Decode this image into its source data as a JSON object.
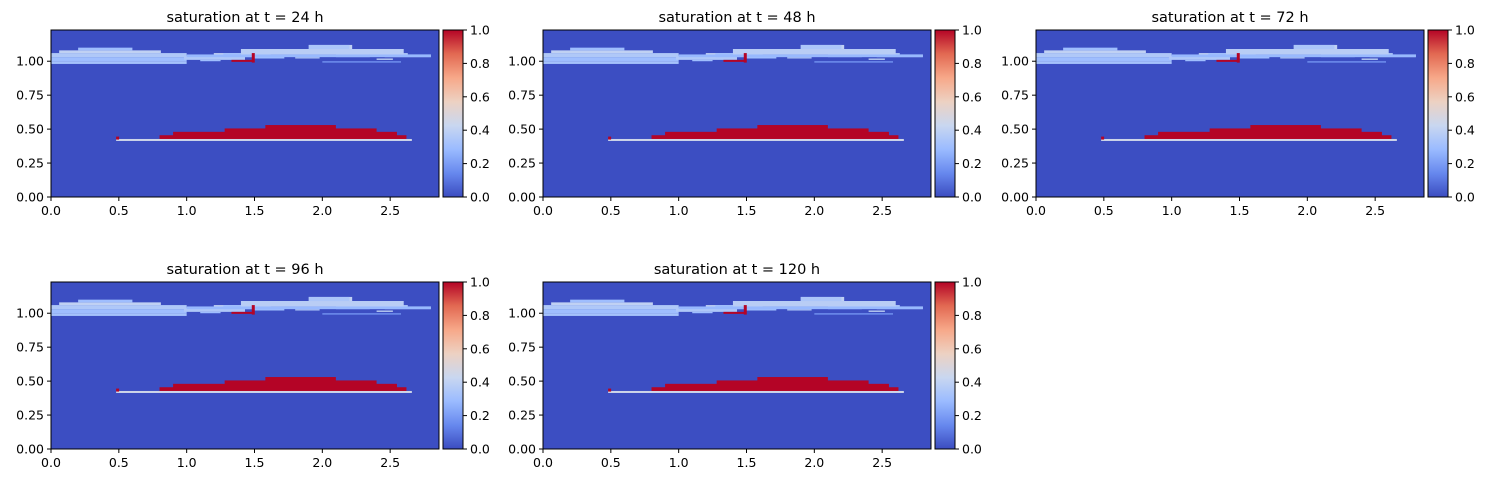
{
  "colormap": {
    "name": "coolwarm",
    "stops": [
      "#3b4cc0",
      "#6788ee",
      "#9abbff",
      "#c9d7f0",
      "#edd1c2",
      "#f7a889",
      "#e26952",
      "#b40426"
    ],
    "field_color": "#3c4ec2",
    "plume_color": "#b40426"
  },
  "chart_data": [
    {
      "type": "heatmap",
      "title": "saturation at t = 24 h",
      "xlim": [
        0,
        2.86
      ],
      "ylim": [
        0,
        1.23
      ],
      "xticks": [
        "0.0",
        "0.5",
        "1.0",
        "1.5",
        "2.0",
        "2.5"
      ],
      "yticks": [
        "0.00",
        "0.25",
        "0.50",
        "0.75",
        "1.00"
      ],
      "colorbar": {
        "range": [
          0,
          1
        ],
        "ticks": [
          "0.0",
          "0.2",
          "0.4",
          "0.6",
          "0.8",
          "1.0"
        ]
      },
      "background_value": 0.0,
      "regions": [
        {
          "kind": "gas-plume",
          "value": 1.0,
          "x": [
            0.8,
            2.62
          ],
          "y": [
            0.43,
            0.53
          ]
        },
        {
          "kind": "leak-line",
          "value": 0.25,
          "x": [
            0.48,
            2.66
          ],
          "y": [
            0.42,
            0.42
          ]
        },
        {
          "kind": "upper-cap",
          "value": 0.35,
          "x": [
            0.0,
            2.8
          ],
          "y": [
            0.98,
            1.12
          ]
        },
        {
          "kind": "upper-plume",
          "value": 1.0,
          "x": [
            1.33,
            1.52
          ],
          "y": [
            0.99,
            1.05
          ]
        }
      ]
    },
    {
      "type": "heatmap",
      "title": "saturation at t = 48 h",
      "xlim": [
        0,
        2.86
      ],
      "ylim": [
        0,
        1.23
      ],
      "xticks": [
        "0.0",
        "0.5",
        "1.0",
        "1.5",
        "2.0",
        "2.5"
      ],
      "yticks": [
        "0.00",
        "0.25",
        "0.50",
        "0.75",
        "1.00"
      ],
      "colorbar": {
        "range": [
          0,
          1
        ],
        "ticks": [
          "0.0",
          "0.2",
          "0.4",
          "0.6",
          "0.8",
          "1.0"
        ]
      },
      "background_value": 0.0,
      "regions": [
        {
          "kind": "gas-plume",
          "value": 1.0,
          "x": [
            0.8,
            2.62
          ],
          "y": [
            0.43,
            0.53
          ]
        },
        {
          "kind": "leak-line",
          "value": 0.25,
          "x": [
            0.48,
            2.66
          ],
          "y": [
            0.42,
            0.42
          ]
        },
        {
          "kind": "upper-cap",
          "value": 0.35,
          "x": [
            0.0,
            2.8
          ],
          "y": [
            0.98,
            1.12
          ]
        },
        {
          "kind": "upper-plume",
          "value": 1.0,
          "x": [
            1.33,
            1.52
          ],
          "y": [
            0.99,
            1.05
          ]
        }
      ]
    },
    {
      "type": "heatmap",
      "title": "saturation at t = 72 h",
      "xlim": [
        0,
        2.86
      ],
      "ylim": [
        0,
        1.23
      ],
      "xticks": [
        "0.0",
        "0.5",
        "1.0",
        "1.5",
        "2.0",
        "2.5"
      ],
      "yticks": [
        "0.00",
        "0.25",
        "0.50",
        "0.75",
        "1.00"
      ],
      "colorbar": {
        "range": [
          0,
          1
        ],
        "ticks": [
          "0.0",
          "0.2",
          "0.4",
          "0.6",
          "0.8",
          "1.0"
        ]
      },
      "background_value": 0.0,
      "regions": [
        {
          "kind": "gas-plume",
          "value": 1.0,
          "x": [
            0.8,
            2.62
          ],
          "y": [
            0.43,
            0.53
          ]
        },
        {
          "kind": "leak-line",
          "value": 0.25,
          "x": [
            0.48,
            2.66
          ],
          "y": [
            0.42,
            0.42
          ]
        },
        {
          "kind": "upper-cap",
          "value": 0.35,
          "x": [
            0.0,
            2.8
          ],
          "y": [
            0.98,
            1.12
          ]
        },
        {
          "kind": "upper-plume",
          "value": 1.0,
          "x": [
            1.33,
            1.52
          ],
          "y": [
            0.99,
            1.05
          ]
        }
      ]
    },
    {
      "type": "heatmap",
      "title": "saturation at t = 96 h",
      "xlim": [
        0,
        2.86
      ],
      "ylim": [
        0,
        1.23
      ],
      "xticks": [
        "0.0",
        "0.5",
        "1.0",
        "1.5",
        "2.0",
        "2.5"
      ],
      "yticks": [
        "0.00",
        "0.25",
        "0.50",
        "0.75",
        "1.00"
      ],
      "colorbar": {
        "range": [
          0,
          1
        ],
        "ticks": [
          "0.0",
          "0.2",
          "0.4",
          "0.6",
          "0.8",
          "1.0"
        ]
      },
      "background_value": 0.0,
      "regions": [
        {
          "kind": "gas-plume",
          "value": 1.0,
          "x": [
            0.8,
            2.62
          ],
          "y": [
            0.43,
            0.53
          ]
        },
        {
          "kind": "leak-line",
          "value": 0.25,
          "x": [
            0.48,
            2.66
          ],
          "y": [
            0.42,
            0.42
          ]
        },
        {
          "kind": "upper-cap",
          "value": 0.35,
          "x": [
            0.0,
            2.8
          ],
          "y": [
            0.98,
            1.12
          ]
        },
        {
          "kind": "upper-plume",
          "value": 1.0,
          "x": [
            1.33,
            1.52
          ],
          "y": [
            0.99,
            1.05
          ]
        }
      ]
    },
    {
      "type": "heatmap",
      "title": "saturation at t = 120 h",
      "xlim": [
        0,
        2.86
      ],
      "ylim": [
        0,
        1.23
      ],
      "xticks": [
        "0.0",
        "0.5",
        "1.0",
        "1.5",
        "2.0",
        "2.5"
      ],
      "yticks": [
        "0.00",
        "0.25",
        "0.50",
        "0.75",
        "1.00"
      ],
      "colorbar": {
        "range": [
          0,
          1
        ],
        "ticks": [
          "0.0",
          "0.2",
          "0.4",
          "0.6",
          "0.8",
          "1.0"
        ]
      },
      "background_value": 0.0,
      "regions": [
        {
          "kind": "gas-plume",
          "value": 1.0,
          "x": [
            0.8,
            2.62
          ],
          "y": [
            0.43,
            0.53
          ]
        },
        {
          "kind": "leak-line",
          "value": 0.25,
          "x": [
            0.48,
            2.66
          ],
          "y": [
            0.42,
            0.42
          ]
        },
        {
          "kind": "upper-cap",
          "value": 0.35,
          "x": [
            0.0,
            2.8
          ],
          "y": [
            0.98,
            1.12
          ]
        },
        {
          "kind": "upper-plume",
          "value": 1.0,
          "x": [
            1.33,
            1.52
          ],
          "y": [
            0.99,
            1.05
          ]
        }
      ]
    }
  ]
}
